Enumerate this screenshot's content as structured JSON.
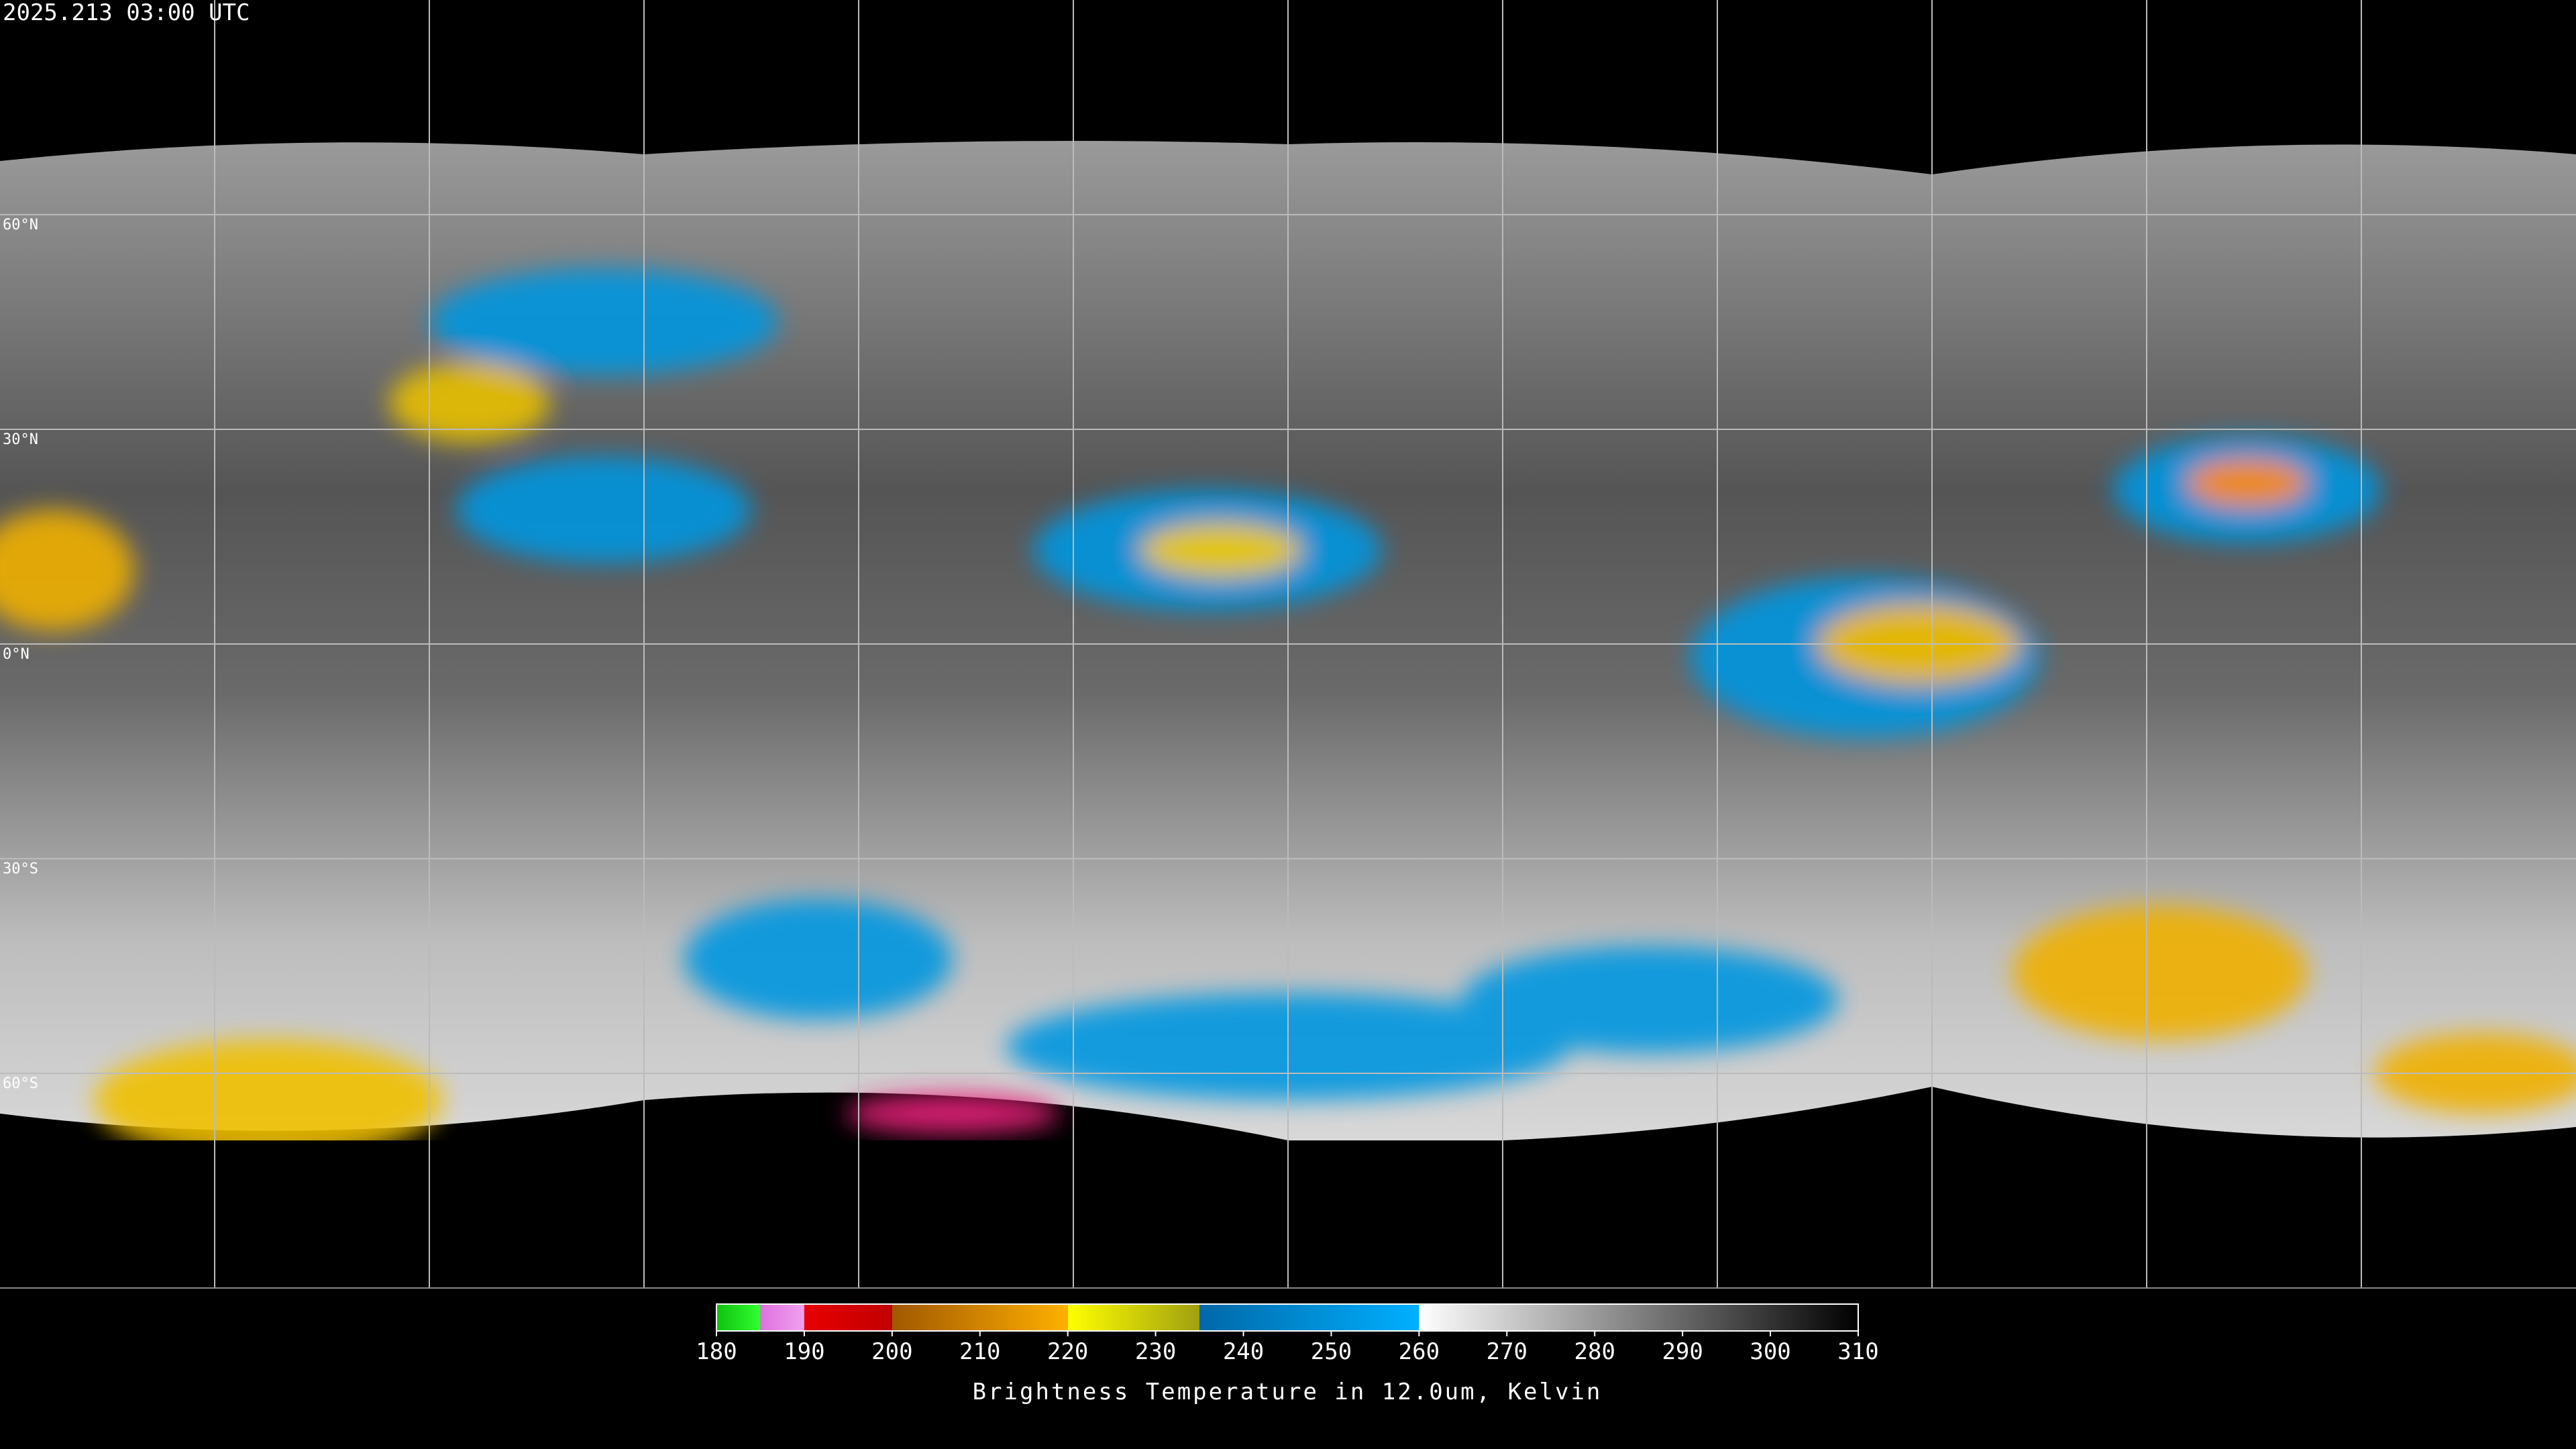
{
  "timestamp": "2025.213 03:00 UTC",
  "latitudes": [
    {
      "value": 60,
      "label": "60°N"
    },
    {
      "value": 30,
      "label": "30°N"
    },
    {
      "value": 0,
      "label": "0°N"
    },
    {
      "value": -30,
      "label": "30°S"
    },
    {
      "value": -60,
      "label": "60°S"
    }
  ],
  "colorbar": {
    "title": "Brightness Temperature in 12.0um, Kelvin",
    "range": [
      180,
      310
    ],
    "ticks": [
      180,
      190,
      200,
      210,
      220,
      230,
      240,
      250,
      260,
      270,
      280,
      290,
      300,
      310
    ],
    "segments": [
      {
        "range": [
          180,
          185
        ],
        "colors": [
          "#10c010",
          "#30ff30"
        ]
      },
      {
        "range": [
          185,
          190
        ],
        "colors": [
          "#e070e0",
          "#f0a0f0"
        ]
      },
      {
        "range": [
          190,
          200
        ],
        "colors": [
          "#e80000",
          "#c00000"
        ]
      },
      {
        "range": [
          200,
          220
        ],
        "colors": [
          "#a05800",
          "#ffb000"
        ]
      },
      {
        "range": [
          220,
          235
        ],
        "colors": [
          "#ffff00",
          "#a0a010"
        ]
      },
      {
        "range": [
          235,
          260
        ],
        "colors": [
          "#0068a8",
          "#00b0ff"
        ]
      },
      {
        "range": [
          260,
          310
        ],
        "colors": [
          "#ffffff",
          "#000000"
        ]
      }
    ]
  }
}
